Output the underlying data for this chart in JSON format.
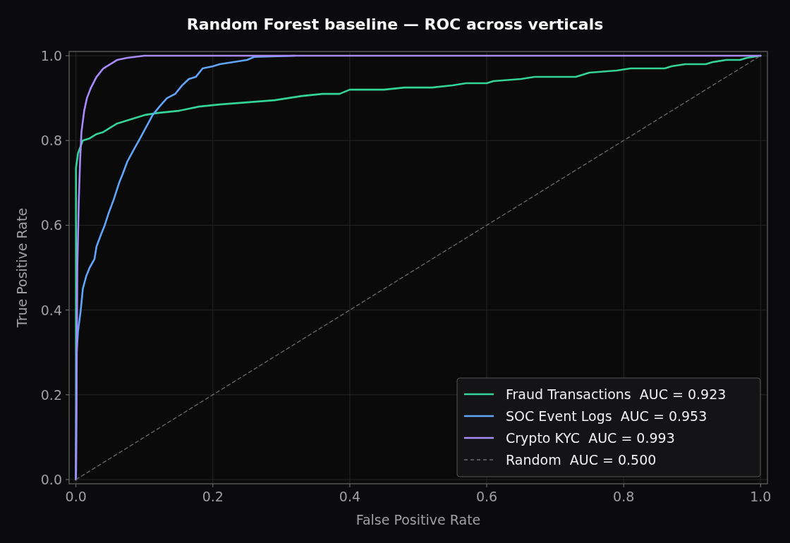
{
  "chart_data": {
    "type": "line",
    "title": "Random Forest baseline — ROC across verticals",
    "xlabel": "False Positive Rate",
    "ylabel": "True Positive Rate",
    "xlim": [
      -0.01,
      1.01
    ],
    "ylim": [
      -0.01,
      1.01
    ],
    "xticks": [
      {
        "value": 0,
        "label": "0.0"
      },
      0.2,
      0.4,
      0.6,
      0.8,
      {
        "value": 1,
        "label": "1.0"
      }
    ],
    "yticks": [
      {
        "value": 0,
        "label": "0.0"
      },
      0.2,
      0.4,
      0.6,
      0.8,
      {
        "value": 1,
        "label": "1.0"
      }
    ],
    "grid": true,
    "legend": "bottom right",
    "marker": "none",
    "series": [
      {
        "name": "Fraud Transactions  AUC = 0.923",
        "color": "#34d399",
        "x": [
          0,
          0,
          0.003,
          0.01,
          0.02,
          0.03,
          0.04,
          0.05,
          0.06,
          0.08,
          0.1,
          0.12,
          0.15,
          0.18,
          0.21,
          0.25,
          0.29,
          0.31,
          0.33,
          0.36,
          0.385,
          0.4,
          0.45,
          0.48,
          0.52,
          0.55,
          0.57,
          0.6,
          0.61,
          0.65,
          0.67,
          0.73,
          0.75,
          0.79,
          0.81,
          0.86,
          0.87,
          0.89,
          0.92,
          0.93,
          0.95,
          0.97,
          0.98,
          1
        ],
        "values": [
          0,
          0.735,
          0.77,
          0.8,
          0.805,
          0.815,
          0.82,
          0.83,
          0.84,
          0.85,
          0.86,
          0.865,
          0.87,
          0.88,
          0.885,
          0.89,
          0.895,
          0.9,
          0.905,
          0.91,
          0.91,
          0.92,
          0.92,
          0.925,
          0.925,
          0.93,
          0.935,
          0.935,
          0.94,
          0.945,
          0.95,
          0.95,
          0.96,
          0.965,
          0.97,
          0.97,
          0.975,
          0.98,
          0.98,
          0.985,
          0.99,
          0.99,
          0.995,
          1
        ]
      },
      {
        "name": "SOC Event Logs  AUC = 0.953",
        "color": "#60a5fa",
        "x": [
          0,
          0.001,
          0.003,
          0.007,
          0.01,
          0.015,
          0.02,
          0.027,
          0.03,
          0.037,
          0.042,
          0.048,
          0.055,
          0.063,
          0.068,
          0.075,
          0.085,
          0.092,
          0.102,
          0.112,
          0.122,
          0.133,
          0.145,
          0.155,
          0.165,
          0.175,
          0.185,
          0.2,
          0.21,
          0.23,
          0.25,
          0.26,
          0.32
        ],
        "values": [
          0,
          0.3,
          0.35,
          0.4,
          0.45,
          0.48,
          0.5,
          0.52,
          0.55,
          0.58,
          0.6,
          0.63,
          0.66,
          0.7,
          0.72,
          0.75,
          0.78,
          0.8,
          0.83,
          0.86,
          0.88,
          0.9,
          0.91,
          0.93,
          0.945,
          0.95,
          0.97,
          0.975,
          0.98,
          0.985,
          0.99,
          0.997,
          1
        ]
      },
      {
        "name": "Crypto KYC  AUC = 0.993",
        "color": "#a78bfa",
        "x": [
          0,
          0.002,
          0.004,
          0.006,
          0.008,
          0.012,
          0.016,
          0.022,
          0.03,
          0.04,
          0.05,
          0.06,
          0.075,
          0.1,
          1
        ],
        "values": [
          0,
          0.5,
          0.65,
          0.75,
          0.82,
          0.87,
          0.9,
          0.925,
          0.95,
          0.97,
          0.98,
          0.99,
          0.995,
          1,
          1
        ]
      },
      {
        "name": "Random  AUC = 0.500",
        "color": "#6b6b6b",
        "line_style": "dashed",
        "x": [
          0,
          1
        ],
        "values": [
          0,
          1
        ]
      }
    ]
  }
}
